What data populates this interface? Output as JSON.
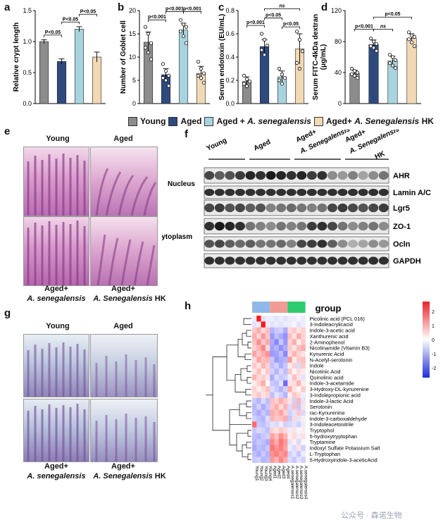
{
  "panel_letters": {
    "a": "a",
    "b": "b",
    "c": "c",
    "d": "d",
    "e": "e",
    "f": "f",
    "g": "g",
    "h": "h"
  },
  "colors": {
    "young": "#8c8c8c",
    "aged": "#2e4a7d",
    "aged_as": "#a8d4e0",
    "aged_ashk": "#f1d9b5"
  },
  "legend": {
    "young": "Young",
    "aged": "Aged",
    "aged_as_prefix": "Aged + ",
    "aged_as_species": "A. senegalensis",
    "aged_ashk_prefix": "Aged+ ",
    "aged_ashk_species": "A. Senegalensis",
    "aged_ashk_suffix": " HK"
  },
  "chart_data": [
    {
      "type": "bar",
      "panel": "a",
      "ylabel": "Relative crypt length",
      "ylim": [
        0,
        1.5
      ],
      "yticks": [
        "0.0",
        "0.5",
        "1.0",
        "1.5"
      ],
      "categories": [
        "Young",
        "Aged",
        "Aged + A. senegalensis",
        "Aged+ A. Senegalensis HK"
      ],
      "values": [
        1.0,
        0.68,
        1.2,
        0.75
      ],
      "errors": [
        0.03,
        0.04,
        0.04,
        0.08
      ],
      "comparisons": [
        {
          "label": "P<0.05",
          "from": 0,
          "to": 1
        },
        {
          "label": "P<0.05",
          "from": 1,
          "to": 2
        },
        {
          "label": "P<0.05",
          "from": 2,
          "to": 3
        }
      ]
    },
    {
      "type": "bar",
      "panel": "b",
      "ylabel": "Number of Goblet cell",
      "ylim": [
        0,
        20
      ],
      "yticks": [
        "0",
        "5",
        "10",
        "15",
        "20"
      ],
      "categories": [
        "Young",
        "Aged",
        "Aged + A. senegalensis",
        "Aged+ A. Senegalensis HK"
      ],
      "values": [
        13.2,
        6.2,
        15.8,
        6.5
      ],
      "errors": [
        2.2,
        1.3,
        1.5,
        1.5
      ],
      "points": [
        [
          16.5,
          15,
          13,
          12,
          11,
          9.5
        ],
        [
          8.5,
          7,
          6,
          5.5,
          5,
          3.8
        ],
        [
          18,
          17,
          16.5,
          15.5,
          14.5,
          13
        ],
        [
          9,
          7.5,
          6.5,
          6,
          5.5,
          4.5
        ]
      ],
      "comparisons": [
        {
          "label": "p<0.001",
          "from": 0,
          "to": 1
        },
        {
          "label": "p<0.001",
          "from": 1,
          "to": 2
        },
        {
          "label": "p<0.001",
          "from": 2,
          "to": 3
        }
      ]
    },
    {
      "type": "bar",
      "panel": "c",
      "ylabel": "Serum endotoxin (EU/mL)",
      "ylim": [
        0,
        0.8
      ],
      "yticks": [
        "0.0",
        "0.2",
        "0.4",
        "0.6",
        "0.8"
      ],
      "categories": [
        "Young",
        "Aged",
        "Aged + A. senegalensis",
        "Aged+ A. Senegalensis HK"
      ],
      "values": [
        0.19,
        0.49,
        0.23,
        0.47
      ],
      "errors": [
        0.04,
        0.06,
        0.05,
        0.13
      ],
      "points": [
        [
          0.24,
          0.21,
          0.19,
          0.17,
          0.15
        ],
        [
          0.6,
          0.55,
          0.5,
          0.46,
          0.42
        ],
        [
          0.3,
          0.25,
          0.22,
          0.2,
          0.17
        ],
        [
          0.62,
          0.55,
          0.45,
          0.35,
          0.3
        ]
      ],
      "comparisons": [
        {
          "label": "p<0.001",
          "from": 0,
          "to": 1
        },
        {
          "label": "p<0.05",
          "from": 1,
          "to": 2
        },
        {
          "label": "p<0.05",
          "from": 2,
          "to": 3
        },
        {
          "label": "ns",
          "from": 1,
          "to": 3
        }
      ]
    },
    {
      "type": "bar",
      "panel": "d",
      "ylabel": "Serum FITC-4kDa dextran (μg/mL)",
      "ylim": [
        0,
        120
      ],
      "yticks": [
        "0",
        "40",
        "80",
        "120"
      ],
      "categories": [
        "Young",
        "Aged",
        "Aged + A. senegalensis",
        "Aged+ A. Senegalensis HK"
      ],
      "values": [
        39,
        76,
        55,
        84
      ],
      "errors": [
        4,
        6,
        6,
        6
      ],
      "points": [
        [
          45,
          42,
          40,
          38,
          36,
          33
        ],
        [
          84,
          80,
          77,
          74,
          72,
          68
        ],
        [
          63,
          60,
          56,
          52,
          49,
          46
        ],
        [
          92,
          88,
          86,
          83,
          79,
          74
        ]
      ],
      "comparisons": [
        {
          "label": "p<0.001",
          "from": 0,
          "to": 1
        },
        {
          "label": "ns",
          "from": 1,
          "to": 2
        },
        {
          "label": "p<0.05",
          "from": 1,
          "to": 3
        }
      ]
    }
  ],
  "panel_e": {
    "young": "Young",
    "aged": "Aged",
    "aged_as_prefix": "Aged+",
    "aged_as_species": "A. senegalensis",
    "aged_ashk_prefix": "Aged+",
    "aged_ashk_species": "A. Senegalensis",
    "aged_ashk_suffix": " HK"
  },
  "panel_g": {
    "young": "Young",
    "aged": "Aged",
    "aged_as_prefix": "Aged+",
    "aged_as_species": "A. senegalensis",
    "aged_ashk_prefix": "Aged+",
    "aged_ashk_species": "A. Senegalensis",
    "aged_ashk_suffix": " HK"
  },
  "panel_f": {
    "groups": [
      {
        "label": "Young"
      },
      {
        "label": "Aged"
      },
      {
        "label": "Aged+",
        "sub": "A. Senegalensis"
      },
      {
        "label": "Aged+",
        "sub": "A. Senegalensis",
        "sub2": "HK"
      }
    ],
    "sections": {
      "nucleus": "Nucleus",
      "cytoplasm": "Cytoplasm"
    },
    "blots": [
      "AHR",
      "Lamin A/C",
      "Lgr5",
      "ZO-1",
      "Ocln",
      "GAPDH"
    ]
  },
  "panel_h": {
    "legend_title": "group",
    "scale_ticks": [
      "2",
      "1",
      "0",
      "-1",
      "-2"
    ],
    "group_colors": [
      "#8fb8e8",
      "#f09c94",
      "#2ecc71"
    ],
    "rows": [
      "Picolinic acid (PCL 016)",
      "3-Indoleacrylicacid",
      "Indole-3-acetic acid",
      "Xanthurenic acid",
      "2-Aminophenol",
      "Nicotinamide (Vitamin B3)",
      "Kynurenic Acid",
      "N-Acetyl-serotonin",
      "Indole",
      "Nicotinic Acid",
      "Quinolinic acid",
      "Indole-3-acetamide",
      "3-Hydroxy-DL-kynurenine",
      "3-Indolepropionic acid",
      "Indole-3-lactic Acid",
      "Serotonin",
      "rac-Kynurenine",
      "Indole-3-carboxaldehyde",
      "3-Indoleacetonitrile",
      "Tryptophol",
      "5-hydroxytryptophan",
      "Tryptamine",
      "Indoxyl Sulfate Potassium Salt",
      "L-Tryptophan",
      "5-Hydroxyindole-3-aceticAcid"
    ],
    "columns": [
      "Young1",
      "Young2",
      "Young3",
      "Young4",
      "Aged1",
      "Aged2",
      "Aged3",
      "Aged4",
      "A.senegalensis1",
      "A.senegalensis2",
      "A.senegalensis3",
      "A.senegalensis4"
    ],
    "matrix": [
      [
        -0.2,
        2.5,
        -0.3,
        -0.2,
        -0.2,
        -0.3,
        -0.2,
        -0.3,
        -0.2,
        -0.2,
        -0.1,
        -0.2
      ],
      [
        -0.3,
        -0.2,
        2.6,
        -0.2,
        -0.3,
        -0.2,
        -0.3,
        -0.2,
        -0.2,
        -0.1,
        -0.3,
        -0.2
      ],
      [
        0.6,
        0.9,
        0.4,
        0.7,
        -0.8,
        -0.6,
        -0.5,
        -0.9,
        0.4,
        0.6,
        0.3,
        0.5
      ],
      [
        0.9,
        0.5,
        1.1,
        0.6,
        -1.1,
        -0.7,
        -0.9,
        -1.2,
        0.7,
        0.3,
        0.9,
        0.5
      ],
      [
        0.7,
        1.2,
        0.6,
        0.9,
        -0.9,
        -1.3,
        -0.6,
        -1.1,
        0.5,
        0.9,
        0.2,
        0.6
      ],
      [
        0.5,
        0.8,
        1.3,
        0.4,
        -1.0,
        -0.8,
        -1.2,
        -0.9,
        0.6,
        0.3,
        0.7,
        0.9
      ],
      [
        1.0,
        0.6,
        0.9,
        1.2,
        -1.1,
        -1.0,
        -0.7,
        -1.3,
        0.4,
        0.8,
        0.5,
        0.3
      ],
      [
        0.4,
        1.0,
        0.7,
        0.8,
        -0.6,
        -1.1,
        -0.9,
        -0.8,
        1.1,
        0.2,
        0.6,
        0.7
      ],
      [
        0.6,
        0.3,
        0.8,
        0.5,
        -0.7,
        -0.5,
        -0.9,
        -0.6,
        0.2,
        0.5,
        -0.4,
        0.6
      ],
      [
        0.3,
        0.7,
        0.2,
        0.6,
        -0.5,
        -0.8,
        -0.4,
        -0.7,
        0.6,
        0.1,
        0.4,
        0.2
      ],
      [
        0.8,
        0.4,
        0.5,
        0.3,
        -0.9,
        -0.4,
        -0.6,
        -0.5,
        -0.2,
        0.7,
        0.3,
        -0.3
      ],
      [
        0.2,
        0.5,
        0.9,
        0.1,
        -0.6,
        -0.7,
        -0.3,
        -1.6,
        0.3,
        0.4,
        0.8,
        0.2
      ],
      [
        0.5,
        0.2,
        0.4,
        0.7,
        -0.4,
        -0.6,
        -0.8,
        -0.5,
        0.9,
        0.3,
        0.1,
        0.6
      ],
      [
        0.4,
        0.6,
        0.3,
        0.5,
        -0.7,
        -0.3,
        -0.5,
        -0.8,
        0.2,
        0.6,
        0.4,
        -0.2
      ],
      [
        -0.6,
        -0.8,
        -0.4,
        -0.7,
        0.7,
        0.5,
        0.9,
        0.6,
        0.3,
        -0.5,
        0.8,
        -0.3
      ],
      [
        -0.8,
        -0.5,
        -0.9,
        -0.6,
        0.6,
        0.9,
        0.4,
        0.8,
        -0.4,
        0.7,
        -0.6,
        0.3
      ],
      [
        -0.7,
        -0.9,
        -0.6,
        -0.8,
        0.9,
        0.7,
        1.0,
        0.5,
        -0.5,
        -0.3,
        0.6,
        -0.4
      ],
      [
        -0.5,
        -0.7,
        -0.8,
        -0.4,
        0.8,
        0.6,
        0.7,
        0.9,
        -0.6,
        0.4,
        -0.3,
        0.2
      ],
      [
        1.6,
        -0.6,
        -0.7,
        -0.5,
        -0.3,
        -0.4,
        -0.2,
        -0.5,
        -0.4,
        -0.3,
        -0.5,
        -0.2
      ],
      [
        -0.6,
        -0.4,
        -0.5,
        -0.7,
        0.5,
        0.3,
        0.6,
        0.4,
        -0.2,
        0.3,
        -0.1,
        0.2
      ],
      [
        -0.7,
        -0.8,
        -0.6,
        -0.5,
        1.0,
        0.7,
        1.2,
        0.8,
        0.2,
        0.4,
        -0.2,
        0.3
      ],
      [
        -0.8,
        -0.6,
        -0.7,
        -0.9,
        1.3,
        0.9,
        1.5,
        1.1,
        -0.3,
        0.2,
        -0.4,
        0.1
      ],
      [
        -0.9,
        -0.7,
        -0.8,
        -0.6,
        1.5,
        1.2,
        1.4,
        1.0,
        -0.2,
        -0.4,
        0.3,
        -0.5
      ],
      [
        -0.7,
        -0.9,
        -0.6,
        -0.8,
        1.2,
        1.4,
        1.1,
        1.3,
        -0.5,
        -0.3,
        -0.6,
        -0.2
      ],
      [
        -0.6,
        -0.5,
        -0.8,
        -0.7,
        1.1,
        0.8,
        1.3,
        0.9,
        -0.4,
        -0.6,
        -0.3,
        -0.5
      ]
    ]
  },
  "watermark": "公众号 · 森诺生物"
}
